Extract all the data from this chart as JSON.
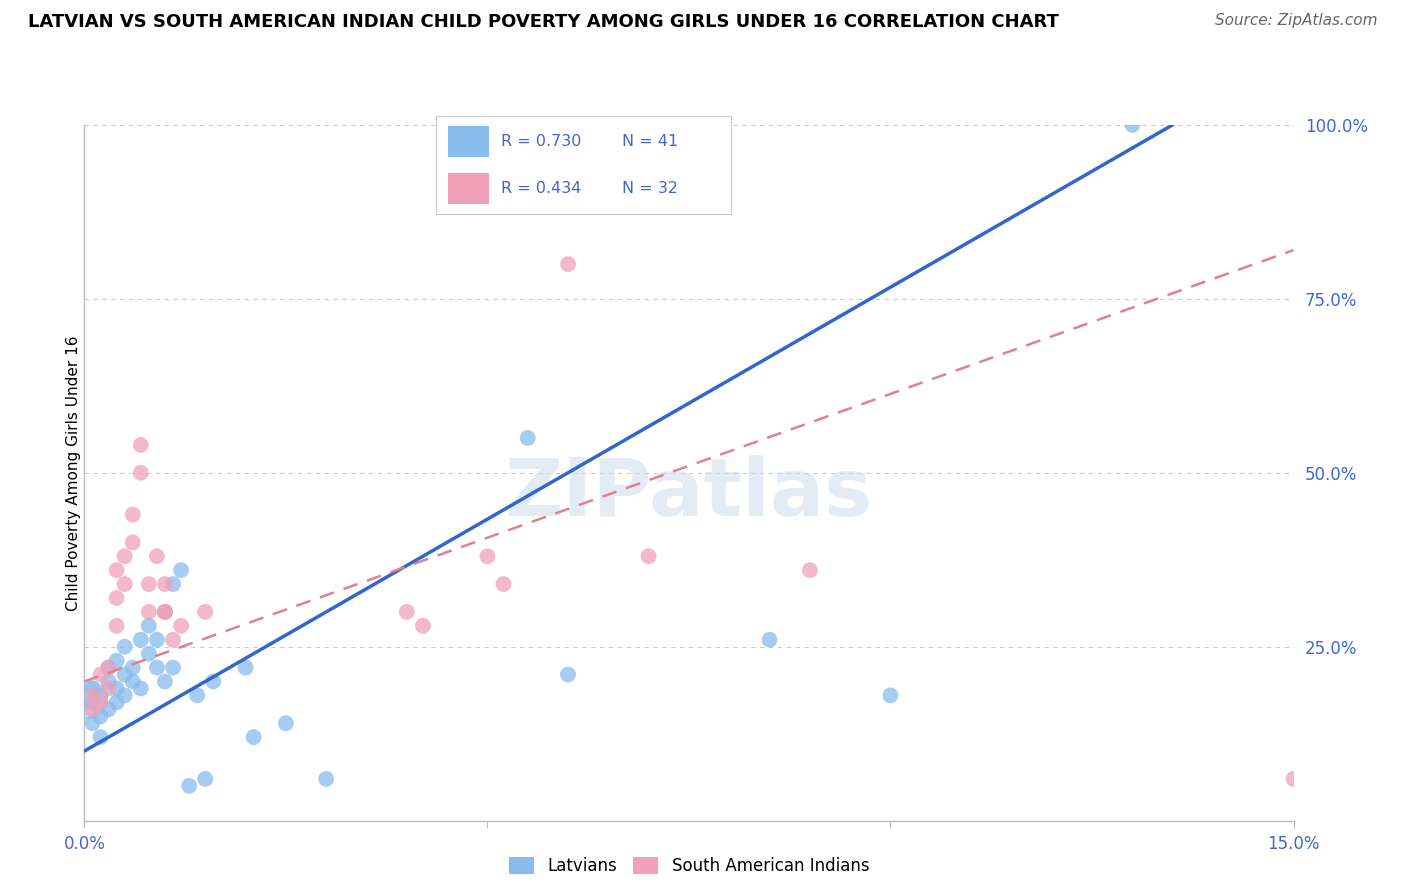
{
  "title": "LATVIAN VS SOUTH AMERICAN INDIAN CHILD POVERTY AMONG GIRLS UNDER 16 CORRELATION CHART",
  "source": "Source: ZipAtlas.com",
  "ylabel": "Child Poverty Among Girls Under 16",
  "xlim": [
    0.0,
    0.15
  ],
  "ylim": [
    0.0,
    1.0
  ],
  "grid_color": "#cccccc",
  "background_color": "#ffffff",
  "latvian_color": "#88bbee",
  "sai_color": "#f0a0b8",
  "line_color_latvian": "#3366cc",
  "line_color_sai": "#e08090",
  "legend_r1": "R = 0.730",
  "legend_n1": "N = 41",
  "legend_r2": "R = 0.434",
  "legend_n2": "N = 32",
  "latvian_points": [
    [
      0.001,
      0.17
    ],
    [
      0.001,
      0.19
    ],
    [
      0.001,
      0.14
    ],
    [
      0.002,
      0.18
    ],
    [
      0.002,
      0.15
    ],
    [
      0.002,
      0.12
    ],
    [
      0.003,
      0.2
    ],
    [
      0.003,
      0.16
    ],
    [
      0.003,
      0.22
    ],
    [
      0.004,
      0.19
    ],
    [
      0.004,
      0.23
    ],
    [
      0.004,
      0.17
    ],
    [
      0.005,
      0.21
    ],
    [
      0.005,
      0.25
    ],
    [
      0.005,
      0.18
    ],
    [
      0.006,
      0.22
    ],
    [
      0.006,
      0.2
    ],
    [
      0.007,
      0.26
    ],
    [
      0.007,
      0.19
    ],
    [
      0.008,
      0.28
    ],
    [
      0.008,
      0.24
    ],
    [
      0.009,
      0.22
    ],
    [
      0.009,
      0.26
    ],
    [
      0.01,
      0.3
    ],
    [
      0.01,
      0.2
    ],
    [
      0.011,
      0.34
    ],
    [
      0.011,
      0.22
    ],
    [
      0.012,
      0.36
    ],
    [
      0.013,
      0.05
    ],
    [
      0.014,
      0.18
    ],
    [
      0.015,
      0.06
    ],
    [
      0.016,
      0.2
    ],
    [
      0.02,
      0.22
    ],
    [
      0.021,
      0.12
    ],
    [
      0.025,
      0.14
    ],
    [
      0.03,
      0.06
    ],
    [
      0.055,
      0.55
    ],
    [
      0.06,
      0.21
    ],
    [
      0.085,
      0.26
    ],
    [
      0.1,
      0.18
    ],
    [
      0.13,
      1.0
    ]
  ],
  "sai_points": [
    [
      0.001,
      0.16
    ],
    [
      0.001,
      0.18
    ],
    [
      0.002,
      0.17
    ],
    [
      0.002,
      0.21
    ],
    [
      0.003,
      0.19
    ],
    [
      0.003,
      0.22
    ],
    [
      0.004,
      0.28
    ],
    [
      0.004,
      0.32
    ],
    [
      0.004,
      0.36
    ],
    [
      0.005,
      0.34
    ],
    [
      0.005,
      0.38
    ],
    [
      0.006,
      0.4
    ],
    [
      0.006,
      0.44
    ],
    [
      0.007,
      0.5
    ],
    [
      0.007,
      0.54
    ],
    [
      0.008,
      0.3
    ],
    [
      0.008,
      0.34
    ],
    [
      0.009,
      0.38
    ],
    [
      0.01,
      0.3
    ],
    [
      0.01,
      0.34
    ],
    [
      0.01,
      0.3
    ],
    [
      0.011,
      0.26
    ],
    [
      0.012,
      0.28
    ],
    [
      0.015,
      0.3
    ],
    [
      0.04,
      0.3
    ],
    [
      0.042,
      0.28
    ],
    [
      0.05,
      0.38
    ],
    [
      0.052,
      0.34
    ],
    [
      0.06,
      0.8
    ],
    [
      0.07,
      0.38
    ],
    [
      0.09,
      0.36
    ],
    [
      0.15,
      0.06
    ]
  ],
  "latvian_line": [
    [
      0.0,
      0.1
    ],
    [
      0.135,
      1.0
    ]
  ],
  "sai_line": [
    [
      0.0,
      0.2
    ],
    [
      0.15,
      0.82
    ]
  ]
}
